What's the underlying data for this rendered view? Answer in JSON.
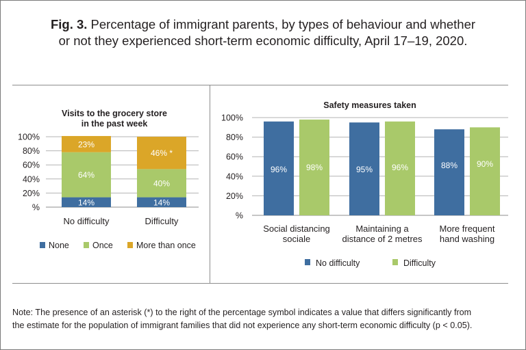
{
  "figure": {
    "fig_label": "Fig. 3.",
    "title_line1": "Percentage of immigrant parents, by types of behaviour and whether",
    "title_line2": "or not they experienced short-term economic difficulty, April 17–19, 2020.",
    "note_line1": "Note: The presence of an asterisk (*) to the right of the percentage symbol indicates a value that differs significantly from",
    "note_line2": "the estimate for the population of immigrant families that did not experience any short-term  economic difficulty (p < 0.05)."
  },
  "chart_data": [
    {
      "type": "bar",
      "stacked": true,
      "title": "Visits to the grocery store in the past week",
      "title_lines": [
        "Visits to the grocery store",
        "in the past week"
      ],
      "categories": [
        "No difficulty",
        "Difficulty"
      ],
      "series": [
        {
          "name": "None",
          "values": [
            14,
            14
          ],
          "labels": [
            "14%",
            "14%"
          ],
          "color": "#3f6ea0"
        },
        {
          "name": "Once",
          "values": [
            64,
            40
          ],
          "labels": [
            "64%",
            "40%"
          ],
          "color": "#a9c96a"
        },
        {
          "name": "More than once",
          "values": [
            23,
            46
          ],
          "labels": [
            "23%",
            "46% *"
          ],
          "color": "#dba628"
        }
      ],
      "yticks": [
        "%",
        "20%",
        "40%",
        "60%",
        "80%",
        "100%"
      ],
      "ylim": [
        0,
        100
      ],
      "grid": true,
      "legend_position": "bottom"
    },
    {
      "type": "bar",
      "title": "Safety measures taken",
      "categories": [
        "Social distancing sociale",
        "Maintaining a distance of 2 metres",
        "More frequent hand washing"
      ],
      "category_lines": [
        [
          "Social distancing",
          "sociale"
        ],
        [
          "Maintaining a",
          "distance of 2 metres"
        ],
        [
          "More frequent",
          "hand washing"
        ]
      ],
      "series": [
        {
          "name": "No difficulty",
          "values": [
            96,
            95,
            88
          ],
          "labels": [
            "96%",
            "95%",
            "88%"
          ],
          "color": "#3f6ea0"
        },
        {
          "name": "Difficulty",
          "values": [
            98,
            96,
            90
          ],
          "labels": [
            "98%",
            "96%",
            "90%"
          ],
          "color": "#a9c96a"
        }
      ],
      "yticks": [
        "%",
        "20%",
        "40%",
        "60%",
        "80%",
        "100%"
      ],
      "ylim": [
        0,
        100
      ],
      "grid": true,
      "legend_position": "bottom"
    }
  ]
}
